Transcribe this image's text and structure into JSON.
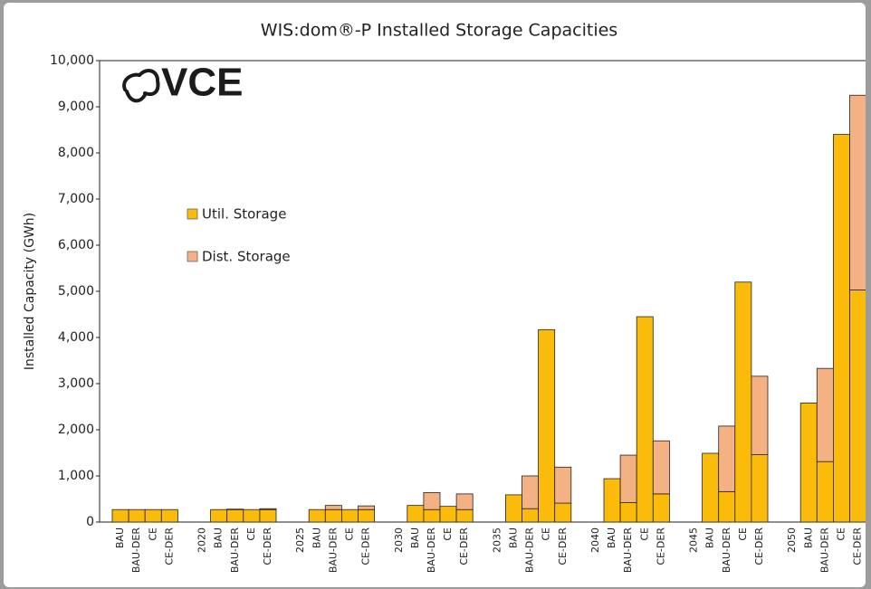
{
  "chart_data": {
    "type": "stacked-bar",
    "title": "WIS:dom®-P Installed Storage Capacities",
    "logo": "VCE",
    "y_label": "Installed Capacity (GWh)",
    "categories": [
      "BAU",
      "BAU-DER",
      "CE",
      "CE-DER",
      null,
      "2020",
      "BAU",
      "BAU-DER",
      "CE",
      "CE-DER",
      null,
      "2025",
      "BAU",
      "BAU-DER",
      "CE",
      "CE-DER",
      null,
      "2030",
      "BAU",
      "BAU-DER",
      "CE",
      "CE-DER",
      null,
      "2035",
      "BAU",
      "BAU-DER",
      "CE",
      "CE-DER",
      null,
      "2040",
      "BAU",
      "BAU-DER",
      "CE",
      "CE-DER",
      null,
      "2045",
      "BAU",
      "BAU-DER",
      "CE",
      "CE-DER",
      null,
      "2050",
      "BAU",
      "BAU-DER",
      "CE",
      "CE-DER"
    ],
    "series": [
      {
        "name": "Util. Storage",
        "color": "#fbbb0a",
        "values": [
          270,
          270,
          270,
          270,
          null,
          null,
          270,
          270,
          270,
          270,
          null,
          null,
          270,
          270,
          270,
          270,
          null,
          null,
          360,
          270,
          340,
          270,
          null,
          null,
          590,
          290,
          4170,
          410,
          null,
          null,
          940,
          420,
          4450,
          610,
          null,
          null,
          1490,
          660,
          5200,
          1460,
          null,
          null,
          2580,
          1310,
          8400,
          5030
        ]
      },
      {
        "name": "Dist. Storage",
        "color": "#f4b183",
        "values": [
          0,
          0,
          0,
          0,
          null,
          null,
          0,
          10,
          0,
          20,
          null,
          null,
          0,
          90,
          0,
          80,
          null,
          null,
          0,
          370,
          0,
          340,
          null,
          null,
          0,
          710,
          0,
          780,
          null,
          null,
          0,
          1030,
          0,
          1150,
          null,
          null,
          0,
          1420,
          0,
          1700,
          null,
          null,
          0,
          2020,
          0,
          4220
        ]
      }
    ],
    "ylim": [
      0,
      10000
    ],
    "yticks": [
      0,
      {
        "value": 1000,
        "label": "1,000"
      },
      {
        "value": 2000,
        "label": "2,000"
      },
      {
        "value": 3000,
        "label": "3,000"
      },
      {
        "value": 4000,
        "label": "4,000"
      },
      {
        "value": 5000,
        "label": "5,000"
      },
      {
        "value": 6000,
        "label": "6,000"
      },
      {
        "value": 7000,
        "label": "7,000"
      },
      {
        "value": 8000,
        "label": "8,000"
      },
      {
        "value": 9000,
        "label": "9,000"
      },
      {
        "value": 10000,
        "label": "10,000"
      }
    ],
    "grid": false
  }
}
